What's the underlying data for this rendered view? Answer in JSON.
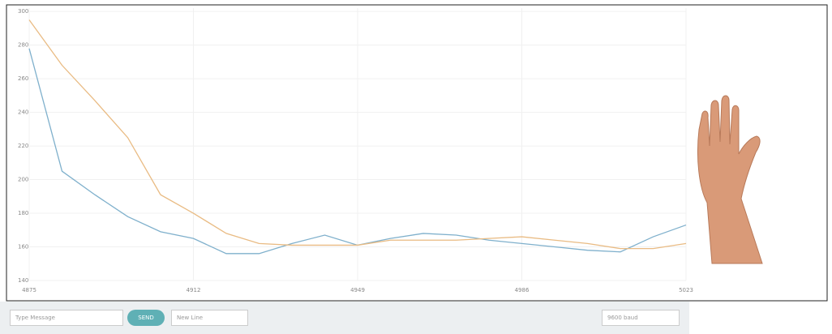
{
  "chart_data": {
    "type": "line",
    "x": [
      4875,
      4882.4,
      4889.8,
      4897.2,
      4904.6,
      4912,
      4919.4,
      4926.8,
      4934.2,
      4941.6,
      4949,
      4956.4,
      4963.8,
      4971.2,
      4978.6,
      4986,
      4993.4,
      5000.8,
      5008.2,
      5015.6,
      5023
    ],
    "series": [
      {
        "color": "#7fb0cc",
        "values": [
          278,
          205,
          191,
          178,
          169,
          165,
          156,
          156,
          162,
          167,
          161,
          165,
          168,
          167,
          164,
          162,
          160,
          158,
          157,
          166,
          173
        ]
      },
      {
        "color": "#e9bb83",
        "values": [
          295,
          268,
          247,
          225,
          191,
          180,
          168,
          162,
          161,
          161,
          161,
          164,
          164,
          164,
          165,
          166,
          164,
          162,
          159,
          159,
          162
        ]
      }
    ],
    "xlim": [
      4875,
      5023
    ],
    "xticks": [
      4875,
      4912,
      4949,
      4986,
      5023
    ],
    "ylim": [
      140,
      302
    ],
    "yticks": [
      140,
      160,
      180,
      200,
      220,
      240,
      260,
      280,
      300
    ],
    "grid": true
  },
  "toolbar": {
    "message_placeholder": "Type Message",
    "send": "SEND",
    "line_ending": "New Line",
    "baud": "9600 baud"
  }
}
